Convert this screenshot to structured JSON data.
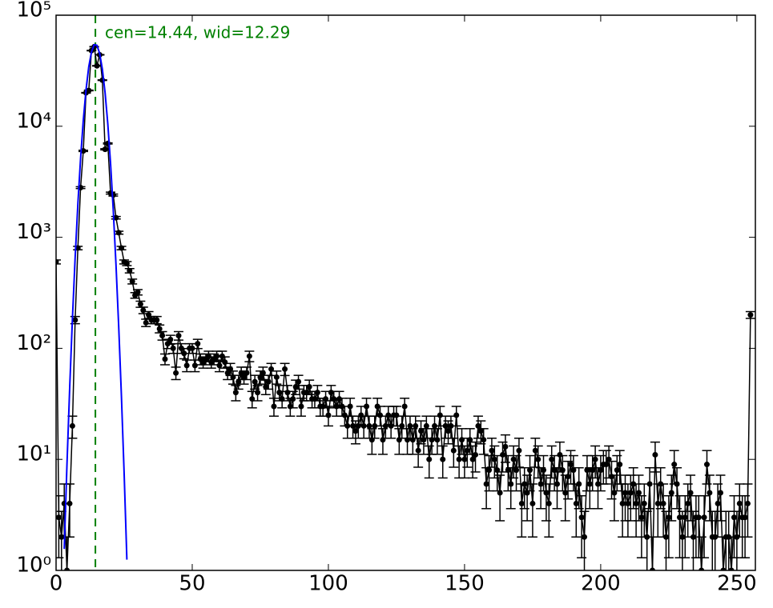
{
  "chart_data": {
    "type": "errorbar",
    "yscale": "log",
    "annotation": "cen=14.44, wid=12.29",
    "annotation_color": "#008000",
    "vline": 14.44,
    "vline_color": "#008000",
    "xlim": [
      0,
      256.8
    ],
    "ylim": [
      1,
      100000
    ],
    "xticks": [
      0,
      50,
      100,
      150,
      200,
      250
    ],
    "yticks": [
      {
        "value": 1,
        "label": "10⁰"
      },
      {
        "value": 10,
        "label": "10¹"
      },
      {
        "value": 100,
        "label": "10²"
      },
      {
        "value": 1000,
        "label": "10³"
      },
      {
        "value": 10000,
        "label": "10⁴"
      },
      {
        "value": 100000,
        "label": "10⁵"
      }
    ],
    "series": [
      {
        "color": "#000000",
        "x": [
          0,
          1,
          2,
          3,
          4,
          5,
          6,
          7,
          8,
          9,
          10,
          11,
          12,
          13,
          14,
          15,
          16,
          17,
          18,
          19,
          20,
          21,
          22,
          23,
          24,
          25,
          26,
          27,
          28,
          29,
          30,
          31,
          32,
          33,
          34,
          35,
          36,
          37,
          38,
          39,
          40,
          41,
          42,
          43,
          44,
          45,
          46,
          47,
          48,
          49,
          50,
          51,
          52,
          53,
          54,
          55,
          56,
          57,
          58,
          59,
          60,
          61,
          62,
          63,
          64,
          65,
          66,
          67,
          68,
          69,
          70,
          71,
          72,
          73,
          74,
          75,
          76,
          77,
          78,
          79,
          80,
          81,
          82,
          83,
          84,
          85,
          86,
          87,
          88,
          89,
          90,
          91,
          92,
          93,
          94,
          95,
          96,
          97,
          98,
          99,
          100,
          101,
          102,
          103,
          104,
          105,
          106,
          107,
          108,
          109,
          110,
          111,
          112,
          113,
          114,
          115,
          116,
          117,
          118,
          119,
          120,
          121,
          122,
          123,
          124,
          125,
          126,
          127,
          128,
          129,
          130,
          131,
          132,
          133,
          134,
          135,
          136,
          137,
          138,
          139,
          140,
          141,
          142,
          143,
          144,
          145,
          146,
          147,
          148,
          149,
          150,
          151,
          152,
          153,
          154,
          155,
          156,
          157,
          158,
          159,
          160,
          161,
          162,
          163,
          164,
          165,
          166,
          167,
          168,
          169,
          170,
          171,
          172,
          173,
          174,
          175,
          176,
          177,
          178,
          179,
          180,
          181,
          182,
          183,
          184,
          185,
          186,
          187,
          188,
          189,
          190,
          191,
          192,
          193,
          194,
          195,
          196,
          197,
          198,
          199,
          200,
          201,
          202,
          203,
          204,
          205,
          206,
          207,
          208,
          209,
          210,
          211,
          212,
          213,
          214,
          215,
          216,
          217,
          218,
          219,
          220,
          221,
          222,
          223,
          224,
          225,
          226,
          227,
          228,
          229,
          230,
          231,
          232,
          233,
          234,
          235,
          236,
          237,
          238,
          239,
          240,
          241,
          242,
          243,
          244,
          245,
          246,
          247,
          248,
          249,
          250,
          251,
          252,
          253,
          254,
          255
        ],
        "values": [
          600,
          3,
          2,
          4,
          1,
          4,
          20,
          180,
          800,
          2800,
          6000,
          20000,
          21000,
          48000,
          52000,
          35000,
          44000,
          26000,
          6200,
          7000,
          2500,
          2400,
          1500,
          1100,
          800,
          600,
          580,
          500,
          400,
          300,
          320,
          250,
          220,
          170,
          200,
          180,
          180,
          180,
          150,
          130,
          80,
          110,
          120,
          100,
          60,
          130,
          100,
          90,
          70,
          100,
          100,
          70,
          110,
          80,
          75,
          80,
          85,
          75,
          80,
          85,
          70,
          85,
          75,
          60,
          65,
          55,
          40,
          50,
          60,
          55,
          60,
          85,
          35,
          50,
          40,
          55,
          60,
          45,
          50,
          65,
          30,
          55,
          40,
          35,
          65,
          40,
          30,
          35,
          45,
          50,
          30,
          40,
          40,
          45,
          35,
          35,
          40,
          30,
          30,
          35,
          25,
          40,
          35,
          30,
          35,
          30,
          25,
          20,
          30,
          20,
          18,
          20,
          25,
          20,
          30,
          20,
          15,
          20,
          30,
          25,
          15,
          20,
          25,
          20,
          25,
          25,
          15,
          20,
          30,
          15,
          20,
          15,
          20,
          12,
          18,
          15,
          20,
          10,
          15,
          20,
          15,
          25,
          10,
          20,
          18,
          20,
          12,
          25,
          10,
          15,
          10,
          12,
          15,
          10,
          11,
          20,
          18,
          15,
          6,
          8,
          12,
          10,
          8,
          5,
          11,
          13,
          8,
          6,
          10,
          8,
          12,
          4,
          6,
          5,
          8,
          4,
          12,
          10,
          6,
          8,
          5,
          4,
          10,
          8,
          6,
          11,
          8,
          5,
          7,
          9,
          8,
          4,
          6,
          3,
          2,
          8,
          6,
          8,
          10,
          6,
          8,
          9,
          9,
          10,
          7,
          5,
          8,
          9,
          4,
          5,
          4,
          5,
          6,
          4,
          5,
          3,
          4,
          2,
          6,
          1,
          11,
          4,
          6,
          4,
          2,
          3,
          5,
          9,
          6,
          3,
          2,
          3,
          4,
          5,
          2,
          3,
          3,
          1,
          3,
          9,
          5,
          2,
          2,
          4,
          5,
          1,
          2,
          2,
          1,
          3,
          2,
          4,
          3,
          3,
          4,
          200
        ],
        "errors": [
          24.5,
          1.7,
          1.4,
          2,
          1,
          2,
          4.5,
          13.4,
          28.3,
          52.9,
          77.5,
          141,
          145,
          219,
          228,
          187,
          210,
          161,
          78.7,
          83.7,
          50,
          49,
          38.7,
          33.2,
          28.3,
          24.5,
          24.1,
          22.4,
          20,
          17.3,
          17.9,
          15.8,
          14.8,
          13,
          14.1,
          13.4,
          13.4,
          13.4,
          12.2,
          11.4,
          8.9,
          10.5,
          11,
          10,
          7.7,
          11.4,
          10,
          9.5,
          8.4,
          10,
          10,
          8.4,
          10.5,
          8.9,
          8.7,
          8.9,
          9.2,
          8.7,
          8.9,
          9.2,
          8.4,
          9.2,
          8.7,
          7.7,
          8.1,
          7.4,
          6.3,
          7.1,
          7.7,
          7.4,
          7.7,
          9.2,
          5.9,
          7.1,
          6.3,
          7.4,
          7.7,
          6.7,
          7.1,
          8.1,
          5.5,
          7.4,
          6.3,
          5.9,
          8.1,
          6.3,
          5.5,
          5.9,
          6.7,
          7.1,
          5.5,
          6.3,
          6.3,
          6.7,
          5.9,
          5.9,
          6.3,
          5.5,
          5.5,
          5.9,
          5,
          6.3,
          5.9,
          5.5,
          5.9,
          5.5,
          5,
          4.5,
          5.5,
          4.5,
          4.2,
          4.5,
          5,
          4.5,
          5.5,
          4.5,
          3.9,
          4.5,
          5.5,
          5,
          3.9,
          4.5,
          5,
          4.5,
          5,
          5,
          3.9,
          4.5,
          5.5,
          3.9,
          4.5,
          3.9,
          4.5,
          3.5,
          4.2,
          3.9,
          4.5,
          3.2,
          3.9,
          4.5,
          3.9,
          5,
          3.2,
          4.5,
          4.2,
          4.5,
          3.5,
          5,
          3.2,
          3.9,
          3.2,
          3.5,
          3.9,
          3.2,
          3.3,
          4.5,
          4.2,
          3.9,
          2.4,
          2.8,
          3.5,
          3.2,
          2.8,
          2.2,
          3.3,
          3.6,
          2.8,
          2.4,
          3.2,
          2.8,
          3.5,
          2,
          2.4,
          2.2,
          2.8,
          2,
          3.5,
          3.2,
          2.4,
          2.8,
          2.2,
          2,
          3.2,
          2.8,
          2.4,
          3.3,
          2.8,
          2.2,
          2.6,
          3,
          2.8,
          2,
          2.4,
          1.7,
          1.4,
          2.8,
          2.4,
          2.8,
          3.2,
          2.4,
          2.8,
          3,
          3,
          3.2,
          2.6,
          2.2,
          2.8,
          3,
          2,
          2.2,
          2,
          2.2,
          2.4,
          2,
          2.2,
          1.7,
          2,
          1.4,
          2.4,
          1,
          3.3,
          2,
          2.4,
          2,
          1.4,
          1.7,
          2.2,
          3,
          2.4,
          1.7,
          1.4,
          1.7,
          2,
          2.2,
          1.4,
          1.7,
          1.7,
          1,
          1.7,
          3,
          2.2,
          1.4,
          1.4,
          2,
          2.2,
          1,
          1.4,
          1.4,
          1,
          1.7,
          1.4,
          2,
          1.7,
          1.7,
          2,
          14.1
        ]
      },
      {
        "type": "line",
        "color": "#0000ff",
        "x": [
          3,
          4,
          5,
          6,
          7,
          8,
          9,
          10,
          11,
          12,
          13,
          14,
          15,
          16,
          17,
          18,
          19,
          20,
          21,
          22,
          23,
          24,
          25,
          26
        ],
        "values": [
          1.56,
          9,
          44,
          184,
          655,
          1990,
          5140,
          11340,
          21300,
          34200,
          46600,
          54200,
          53600,
          45300,
          32600,
          20000,
          10460,
          4640,
          1760,
          568,
          157,
          37,
          7.4,
          1.25
        ]
      }
    ]
  }
}
